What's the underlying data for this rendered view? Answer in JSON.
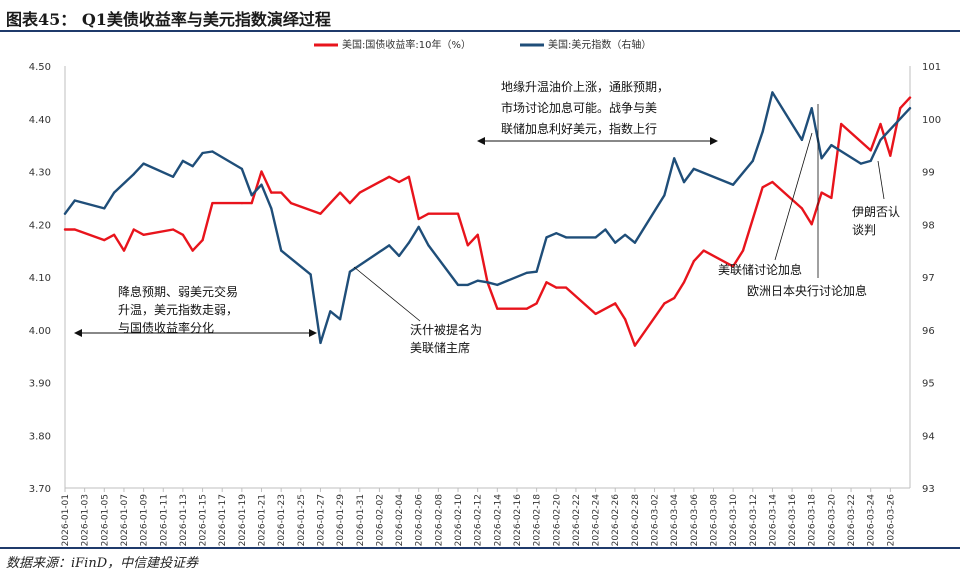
{
  "header": {
    "title": "图表45： Q1美债收益率与美元指数演绎过程"
  },
  "footer": {
    "source": "数据来源：iFinD，中信建投证券"
  },
  "chart_data": {
    "type": "line",
    "title": "",
    "xlabel": "",
    "ylabel": "",
    "ylim_left": [
      3.7,
      4.5
    ],
    "ylim_right": [
      93,
      101
    ],
    "left_ticks": [
      "4.50",
      "4.40",
      "4.30",
      "4.20",
      "4.10",
      "4.00",
      "3.90",
      "3.80",
      "3.70"
    ],
    "right_ticks": [
      "101",
      "100",
      "99",
      "98",
      "97",
      "96",
      "95",
      "94",
      "93"
    ],
    "x_tick_labels": [
      "2026-01-01",
      "2026-01-03",
      "2026-01-05",
      "2026-01-07",
      "2026-01-09",
      "2026-01-11",
      "2026-01-13",
      "2026-01-15",
      "2026-01-17",
      "2026-01-19",
      "2026-01-21",
      "2026-01-23",
      "2026-01-25",
      "2026-01-27",
      "2026-01-29",
      "2026-01-31",
      "2026-02-02",
      "2026-02-04",
      "2026-02-06",
      "2026-02-08",
      "2026-02-10",
      "2026-02-12",
      "2026-02-14",
      "2026-02-16",
      "2026-02-18",
      "2026-02-20",
      "2026-02-22",
      "2026-02-24",
      "2026-02-26",
      "2026-02-28",
      "2026-03-02",
      "2026-03-04",
      "2026-03-06",
      "2026-03-08",
      "2026-03-10",
      "2026-03-12",
      "2026-03-14",
      "2026-03-16",
      "2026-03-18",
      "2026-03-20",
      "2026-03-22",
      "2026-03-24",
      "2026-03-26"
    ],
    "legend_position": "top",
    "grid": false,
    "series": [
      {
        "name": "美国:国债收益率:10年（%）",
        "color": "#e8141c",
        "axis": "left",
        "points": [
          [
            "2026-01-01",
            4.19
          ],
          [
            "2026-01-02",
            4.19
          ],
          [
            "2026-01-05",
            4.17
          ],
          [
            "2026-01-06",
            4.18
          ],
          [
            "2026-01-07",
            4.15
          ],
          [
            "2026-01-08",
            4.19
          ],
          [
            "2026-01-09",
            4.18
          ],
          [
            "2026-01-12",
            4.19
          ],
          [
            "2026-01-13",
            4.18
          ],
          [
            "2026-01-14",
            4.15
          ],
          [
            "2026-01-15",
            4.17
          ],
          [
            "2026-01-16",
            4.24
          ],
          [
            "2026-01-19",
            4.24
          ],
          [
            "2026-01-20",
            4.24
          ],
          [
            "2026-01-21",
            4.3
          ],
          [
            "2026-01-22",
            4.26
          ],
          [
            "2026-01-23",
            4.26
          ],
          [
            "2026-01-24",
            4.24
          ],
          [
            "2026-01-27",
            4.22
          ],
          [
            "2026-01-28",
            4.24
          ],
          [
            "2026-01-29",
            4.26
          ],
          [
            "2026-01-30",
            4.24
          ],
          [
            "2026-01-31",
            4.26
          ],
          [
            "2026-02-03",
            4.29
          ],
          [
            "2026-02-04",
            4.28
          ],
          [
            "2026-02-05",
            4.29
          ],
          [
            "2026-02-06",
            4.21
          ],
          [
            "2026-02-07",
            4.22
          ],
          [
            "2026-02-10",
            4.22
          ],
          [
            "2026-02-11",
            4.16
          ],
          [
            "2026-02-12",
            4.18
          ],
          [
            "2026-02-13",
            4.09
          ],
          [
            "2026-02-14",
            4.04
          ],
          [
            "2026-02-17",
            4.04
          ],
          [
            "2026-02-18",
            4.05
          ],
          [
            "2026-02-19",
            4.09
          ],
          [
            "2026-02-20",
            4.08
          ],
          [
            "2026-02-21",
            4.08
          ],
          [
            "2026-02-24",
            4.03
          ],
          [
            "2026-02-26",
            4.05
          ],
          [
            "2026-02-27",
            4.02
          ],
          [
            "2026-02-28",
            3.97
          ],
          [
            "2026-03-03",
            4.05
          ],
          [
            "2026-03-04",
            4.06
          ],
          [
            "2026-03-05",
            4.09
          ],
          [
            "2026-03-06",
            4.13
          ],
          [
            "2026-03-07",
            4.15
          ],
          [
            "2026-03-10",
            4.12
          ],
          [
            "2026-03-11",
            4.15
          ],
          [
            "2026-03-13",
            4.27
          ],
          [
            "2026-03-14",
            4.28
          ],
          [
            "2026-03-17",
            4.23
          ],
          [
            "2026-03-18",
            4.2
          ],
          [
            "2026-03-19",
            4.26
          ],
          [
            "2026-03-20",
            4.25
          ],
          [
            "2026-03-21",
            4.39
          ],
          [
            "2026-03-24",
            4.34
          ],
          [
            "2026-03-25",
            4.39
          ],
          [
            "2026-03-26",
            4.33
          ],
          [
            "2026-03-27",
            4.42
          ],
          [
            "2026-03-28",
            4.44
          ]
        ]
      },
      {
        "name": "美国:美元指数（右轴）",
        "color": "#1f4e79",
        "axis": "right",
        "points": [
          [
            "2026-01-01",
            98.2
          ],
          [
            "2026-01-02",
            98.45
          ],
          [
            "2026-01-05",
            98.3
          ],
          [
            "2026-01-06",
            98.6
          ],
          [
            "2026-01-08",
            98.95
          ],
          [
            "2026-01-09",
            99.15
          ],
          [
            "2026-01-12",
            98.9
          ],
          [
            "2026-01-13",
            99.2
          ],
          [
            "2026-01-14",
            99.1
          ],
          [
            "2026-01-15",
            99.35
          ],
          [
            "2026-01-16",
            99.38
          ],
          [
            "2026-01-19",
            99.05
          ],
          [
            "2026-01-20",
            98.55
          ],
          [
            "2026-01-21",
            98.75
          ],
          [
            "2026-01-22",
            98.3
          ],
          [
            "2026-01-23",
            97.5
          ],
          [
            "2026-01-26",
            97.05
          ],
          [
            "2026-01-27",
            95.75
          ],
          [
            "2026-01-28",
            96.35
          ],
          [
            "2026-01-29",
            96.2
          ],
          [
            "2026-01-30",
            97.1
          ],
          [
            "2026-02-03",
            97.6
          ],
          [
            "2026-02-04",
            97.4
          ],
          [
            "2026-02-05",
            97.65
          ],
          [
            "2026-02-06",
            97.95
          ],
          [
            "2026-02-07",
            97.6
          ],
          [
            "2026-02-10",
            96.85
          ],
          [
            "2026-02-11",
            96.85
          ],
          [
            "2026-02-12",
            96.93
          ],
          [
            "2026-02-13",
            96.9
          ],
          [
            "2026-02-14",
            96.85
          ],
          [
            "2026-02-17",
            97.08
          ],
          [
            "2026-02-18",
            97.1
          ],
          [
            "2026-02-19",
            97.75
          ],
          [
            "2026-02-20",
            97.83
          ],
          [
            "2026-02-21",
            97.75
          ],
          [
            "2026-02-24",
            97.75
          ],
          [
            "2026-02-25",
            97.9
          ],
          [
            "2026-02-26",
            97.65
          ],
          [
            "2026-02-27",
            97.8
          ],
          [
            "2026-02-28",
            97.65
          ],
          [
            "2026-03-03",
            98.55
          ],
          [
            "2026-03-04",
            99.25
          ],
          [
            "2026-03-05",
            98.8
          ],
          [
            "2026-03-06",
            99.05
          ],
          [
            "2026-03-10",
            98.75
          ],
          [
            "2026-03-12",
            99.2
          ],
          [
            "2026-03-13",
            99.75
          ],
          [
            "2026-03-14",
            100.5
          ],
          [
            "2026-03-17",
            99.6
          ],
          [
            "2026-03-18",
            100.2
          ],
          [
            "2026-03-19",
            99.25
          ],
          [
            "2026-03-20",
            99.5
          ],
          [
            "2026-03-23",
            99.15
          ],
          [
            "2026-03-24",
            99.2
          ],
          [
            "2026-03-25",
            99.6
          ],
          [
            "2026-03-28",
            100.2
          ]
        ]
      }
    ],
    "annotations": [
      {
        "lines": [
          "地缘升温油价上涨，通胀预期，",
          "市场讨论加息可能。战争与美",
          "联储加息利好美元，指数上行"
        ]
      },
      {
        "lines": [
          "降息预期、弱美元交易",
          "升温，美元指数走弱，",
          "与国债收益率分化"
        ]
      },
      {
        "lines": [
          "沃什被提名为",
          "美联储主席"
        ]
      },
      {
        "lines": [
          "美联储讨论加息"
        ]
      },
      {
        "lines": [
          "欧洲日本央行讨论加息"
        ]
      },
      {
        "lines": [
          "伊朗否认",
          "谈判"
        ]
      }
    ]
  }
}
